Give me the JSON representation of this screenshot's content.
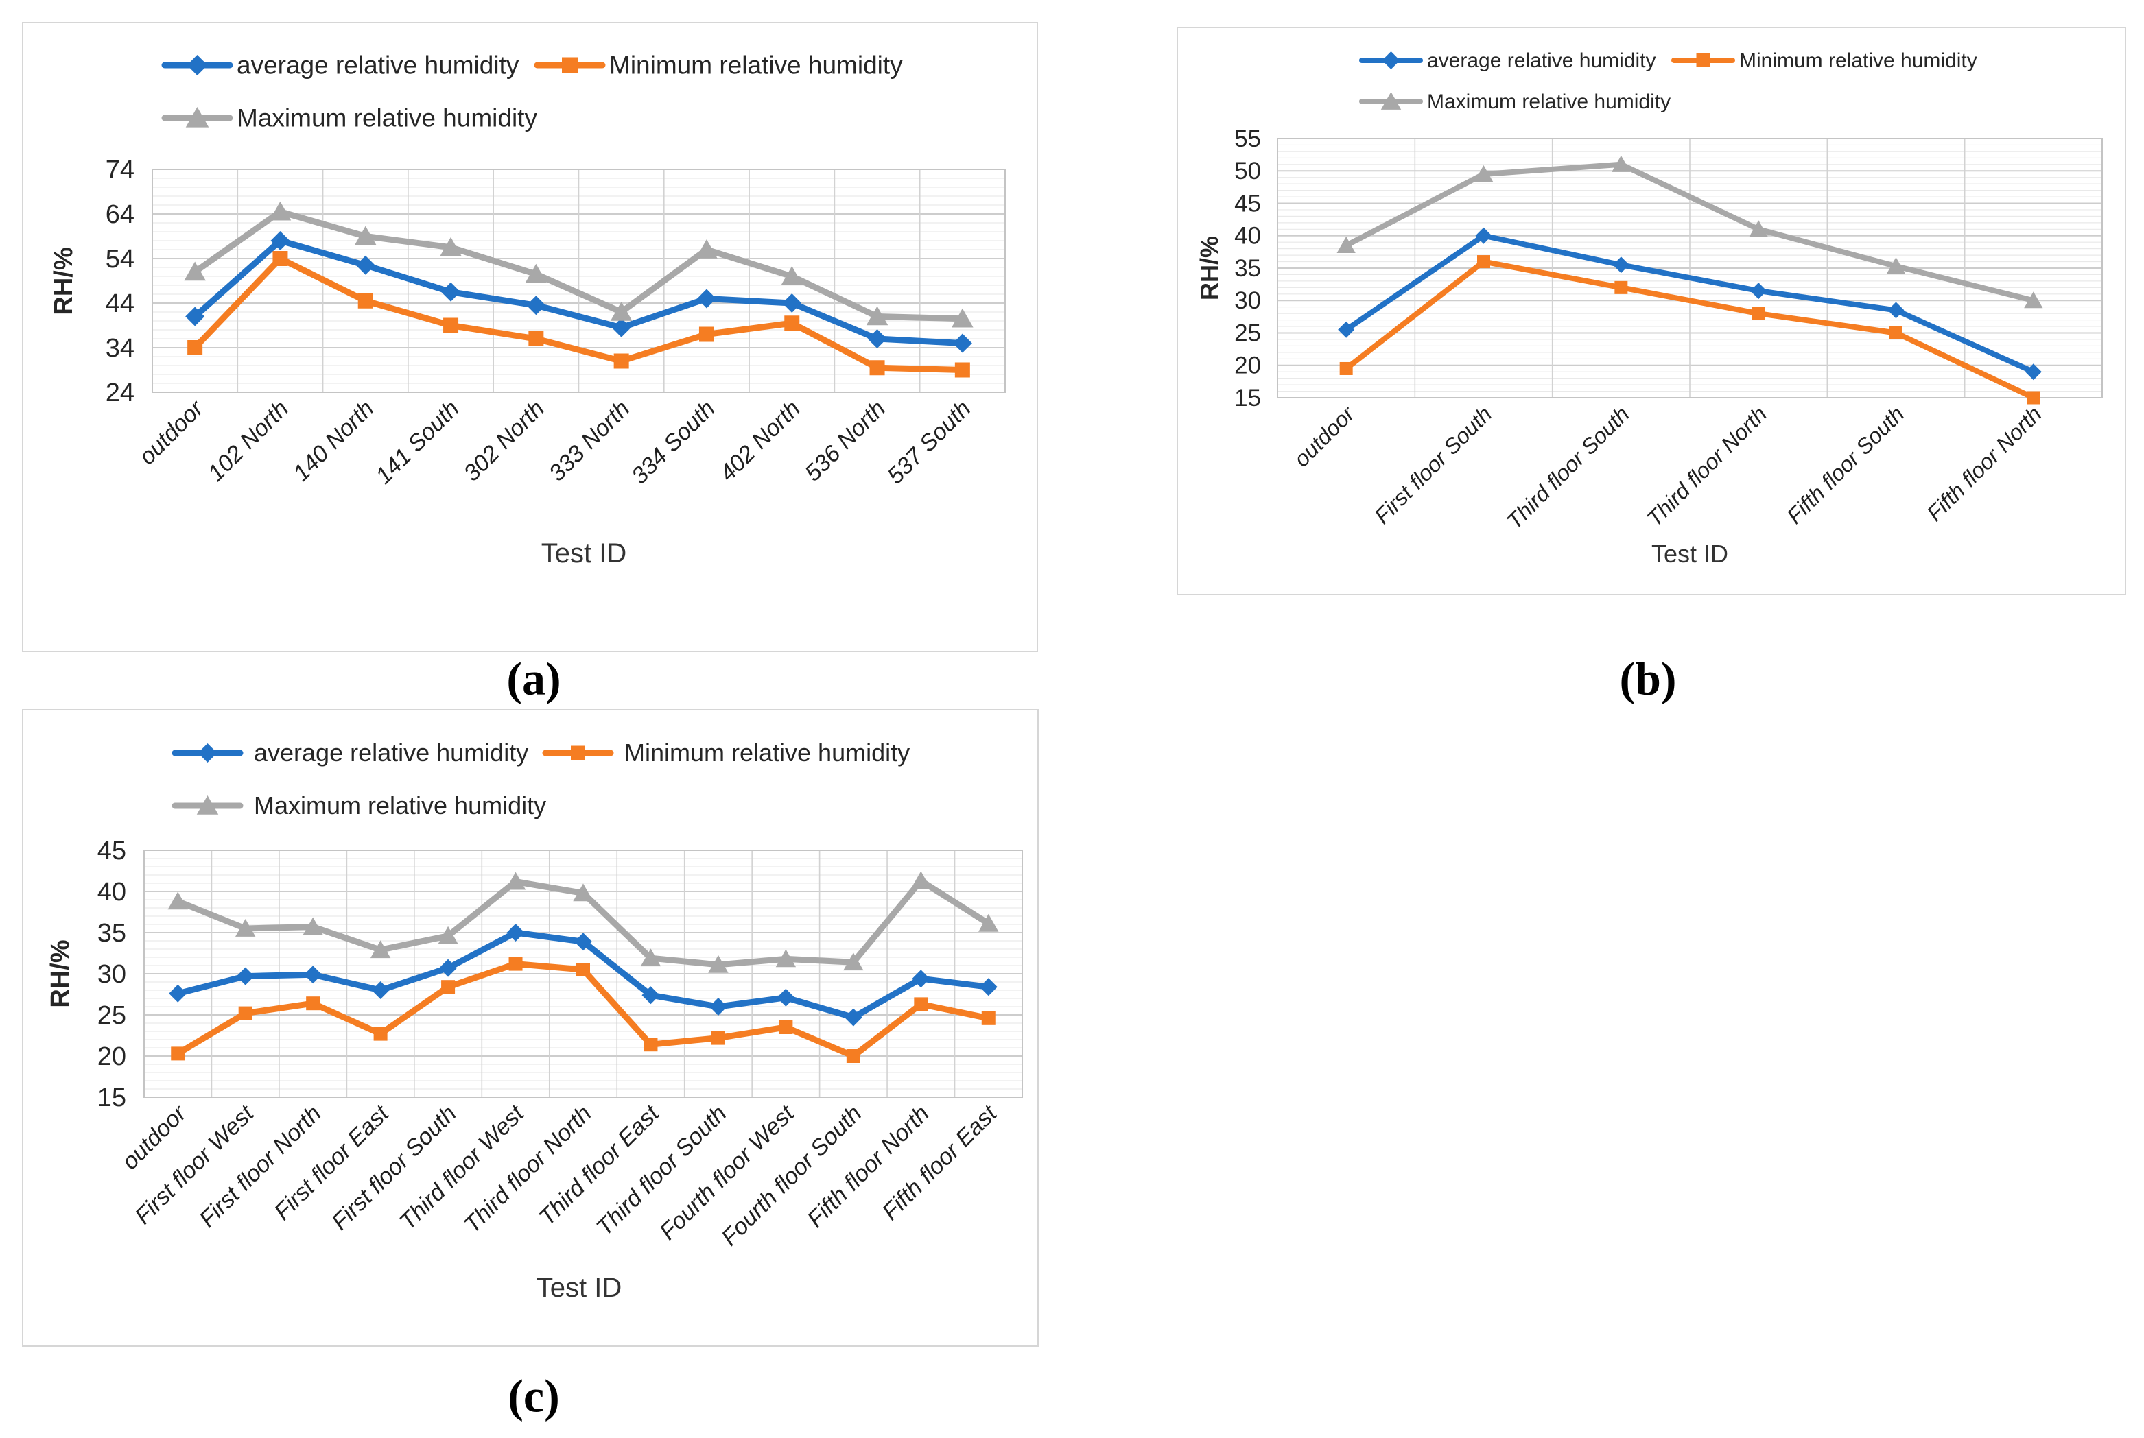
{
  "page": {
    "background": "#ffffff",
    "text_color": "#262626",
    "panel_border_color": "#d6d6d6",
    "plot_border_color": "#c4c4c4",
    "major_grid_color": "#cdcdcd",
    "minor_grid_color": "#e9e9e9",
    "vertical_grid_color": "#d2d2d2"
  },
  "chart_data": [
    {
      "id": "a",
      "type": "line",
      "caption": "(a)",
      "title": "",
      "xlabel": "Test ID",
      "ylabel": "RH/%",
      "ylim": [
        24,
        74
      ],
      "ytick_step": 10,
      "yminor_step": 2,
      "yticks": [
        24,
        34,
        44,
        54,
        64,
        74
      ],
      "grid": true,
      "legend_position": "top-left-two-rows",
      "categories": [
        "outdoor",
        "102 North",
        "140 North",
        "141 South",
        "302 North",
        "333 North",
        "334 South",
        "402 North",
        "536 North",
        "537 South"
      ],
      "series": [
        {
          "name": "average relative humidity",
          "marker": "diamond",
          "color": "#2272C6",
          "values": [
            41,
            58,
            52.5,
            46.5,
            43.5,
            38.5,
            45,
            44,
            36,
            35
          ]
        },
        {
          "name": "Minimum relative humidity",
          "marker": "square",
          "color": "#F57D22",
          "values": [
            34,
            54,
            44.5,
            39,
            36,
            31,
            37,
            39.5,
            29.5,
            29
          ]
        },
        {
          "name": "Maximum relative humidity",
          "marker": "triangle",
          "color": "#A8A8A8",
          "values": [
            51,
            64.5,
            59,
            56.5,
            50.5,
            42,
            56,
            50,
            41,
            40.5
          ]
        }
      ]
    },
    {
      "id": "b",
      "type": "line",
      "caption": "(b)",
      "title": "",
      "xlabel": "Test ID",
      "ylabel": "RH/%",
      "ylim": [
        15,
        55
      ],
      "ytick_step": 5,
      "yminor_step": 1,
      "yticks": [
        15,
        20,
        25,
        30,
        35,
        40,
        45,
        50,
        55
      ],
      "grid": true,
      "legend_position": "top-left-two-rows",
      "categories": [
        "outdoor",
        "First floor South",
        "Third floor South",
        "Third floor North",
        "Fifth floor South",
        "Fifth floor North"
      ],
      "series": [
        {
          "name": "average relative humidity",
          "marker": "diamond",
          "color": "#2272C6",
          "values": [
            25.5,
            40,
            35.5,
            31.5,
            28.5,
            19
          ]
        },
        {
          "name": "Minimum relative humidity",
          "marker": "square",
          "color": "#F57D22",
          "values": [
            19.5,
            36,
            32,
            28,
            25,
            15
          ]
        },
        {
          "name": "Maximum relative humidity",
          "marker": "triangle",
          "color": "#A8A8A8",
          "values": [
            38.5,
            49.5,
            51,
            41,
            35.3,
            30
          ]
        }
      ]
    },
    {
      "id": "c",
      "type": "line",
      "caption": "(c)",
      "title": "",
      "xlabel": "Test ID",
      "ylabel": "RH/%",
      "ylim": [
        15,
        45
      ],
      "ytick_step": 5,
      "yminor_step": 1,
      "yticks": [
        15,
        20,
        25,
        30,
        35,
        40,
        45
      ],
      "grid": true,
      "legend_position": "top-left-two-rows",
      "categories": [
        "outdoor",
        "First floor West",
        "First floor North",
        "First floor East",
        "First floor South",
        "Third floor West",
        "Third floor North",
        "Third floor East",
        "Third floor South",
        "Fourth floor West",
        "Fourth floor South",
        "Fifth floor North",
        "Fifth floor East"
      ],
      "series": [
        {
          "name": "average relative humidity",
          "marker": "diamond",
          "color": "#2272C6",
          "values": [
            27.6,
            29.7,
            29.9,
            28,
            30.7,
            35,
            33.9,
            27.4,
            26,
            27.1,
            24.7,
            29.4,
            28.4
          ]
        },
        {
          "name": "Minimum relative humidity",
          "marker": "square",
          "color": "#F57D22",
          "values": [
            20.3,
            25.2,
            26.4,
            22.7,
            28.4,
            31.2,
            30.5,
            21.4,
            22.2,
            23.5,
            20,
            26.3,
            24.6
          ]
        },
        {
          "name": "Maximum relative humidity",
          "marker": "triangle",
          "color": "#A8A8A8",
          "values": [
            38.8,
            35.5,
            35.7,
            32.9,
            34.6,
            41.2,
            39.8,
            31.9,
            31.1,
            31.8,
            31.4,
            41.3,
            36.1
          ]
        }
      ]
    }
  ]
}
